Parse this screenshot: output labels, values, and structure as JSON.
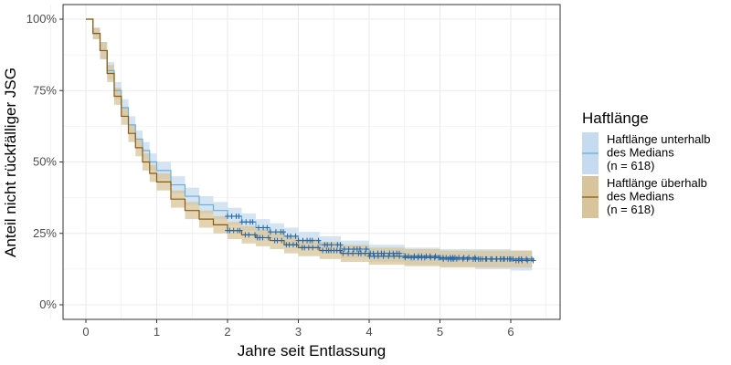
{
  "chart_data": {
    "type": "line",
    "subtype": "kaplan-meier survival curve with confidence bands and censoring marks",
    "title": "",
    "xlabel": "Jahre seit Entlassung",
    "ylabel": "Anteil nicht rückfälliger JSG",
    "xlim": [
      -0.3,
      6.7
    ],
    "ylim": [
      -0.05,
      1.05
    ],
    "x_ticks": [
      0,
      1,
      2,
      3,
      4,
      5,
      6
    ],
    "x_tick_labels": [
      "0",
      "1",
      "2",
      "3",
      "4",
      "5",
      "6"
    ],
    "y_ticks": [
      0,
      0.25,
      0.5,
      0.75,
      1.0
    ],
    "y_tick_labels": [
      "0%",
      "25%",
      "50%",
      "75%",
      "100%"
    ],
    "grid": true,
    "legend": {
      "title": "Haftlänge",
      "position": "right",
      "entries": [
        {
          "label_lines": [
            "Haftlänge unterhalb",
            "des Medians",
            "(n = 618)"
          ],
          "line_color": "#6BAED6",
          "fill_color": "#C6DBEF"
        },
        {
          "label_lines": [
            "Haftlänge überhalb",
            "des Medians",
            "(n = 618)"
          ],
          "line_color": "#8C5A0B",
          "fill_color": "#D8C49A"
        }
      ]
    },
    "series": [
      {
        "name": "Haftlänge unterhalb des Medians (n = 618)",
        "color": "#6BAED6",
        "x": [
          0,
          0.1,
          0.2,
          0.3,
          0.4,
          0.5,
          0.6,
          0.7,
          0.8,
          0.9,
          1.0,
          1.2,
          1.4,
          1.6,
          1.8,
          2.0,
          2.2,
          2.4,
          2.6,
          2.8,
          3.0,
          3.3,
          3.6,
          4.0,
          4.5,
          5.0,
          5.5,
          6.0,
          6.3
        ],
        "y": [
          1.0,
          0.95,
          0.89,
          0.82,
          0.75,
          0.69,
          0.63,
          0.58,
          0.54,
          0.5,
          0.47,
          0.42,
          0.38,
          0.35,
          0.33,
          0.31,
          0.29,
          0.27,
          0.255,
          0.24,
          0.225,
          0.21,
          0.195,
          0.18,
          0.17,
          0.165,
          0.16,
          0.155,
          0.155
        ],
        "ci_lower": [
          1.0,
          0.93,
          0.86,
          0.79,
          0.72,
          0.66,
          0.6,
          0.55,
          0.51,
          0.47,
          0.44,
          0.39,
          0.35,
          0.32,
          0.3,
          0.28,
          0.26,
          0.24,
          0.225,
          0.21,
          0.195,
          0.18,
          0.165,
          0.15,
          0.14,
          0.135,
          0.125,
          0.12,
          0.12
        ],
        "ci_upper": [
          1.0,
          0.97,
          0.92,
          0.85,
          0.78,
          0.72,
          0.66,
          0.61,
          0.57,
          0.53,
          0.5,
          0.45,
          0.41,
          0.38,
          0.36,
          0.34,
          0.32,
          0.3,
          0.285,
          0.27,
          0.255,
          0.24,
          0.225,
          0.21,
          0.2,
          0.195,
          0.195,
          0.19,
          0.19
        ]
      },
      {
        "name": "Haftlänge überhalb des Medians (n = 618)",
        "color": "#8C5A0B",
        "x": [
          0,
          0.1,
          0.2,
          0.3,
          0.4,
          0.5,
          0.6,
          0.7,
          0.8,
          0.9,
          1.0,
          1.2,
          1.4,
          1.6,
          1.8,
          2.0,
          2.2,
          2.4,
          2.6,
          2.8,
          3.0,
          3.3,
          3.6,
          4.0,
          4.5,
          5.0,
          5.5,
          6.0,
          6.3
        ],
        "y": [
          1.0,
          0.95,
          0.89,
          0.81,
          0.73,
          0.66,
          0.6,
          0.55,
          0.5,
          0.46,
          0.43,
          0.37,
          0.33,
          0.3,
          0.28,
          0.26,
          0.245,
          0.235,
          0.225,
          0.21,
          0.2,
          0.19,
          0.18,
          0.17,
          0.165,
          0.16,
          0.16,
          0.16,
          0.16
        ],
        "ci_lower": [
          1.0,
          0.93,
          0.86,
          0.78,
          0.7,
          0.63,
          0.57,
          0.52,
          0.47,
          0.43,
          0.4,
          0.34,
          0.3,
          0.27,
          0.25,
          0.23,
          0.215,
          0.205,
          0.195,
          0.18,
          0.17,
          0.16,
          0.15,
          0.14,
          0.135,
          0.13,
          0.13,
          0.13,
          0.13
        ],
        "ci_upper": [
          1.0,
          0.97,
          0.92,
          0.84,
          0.76,
          0.69,
          0.63,
          0.58,
          0.53,
          0.49,
          0.46,
          0.4,
          0.36,
          0.33,
          0.31,
          0.29,
          0.275,
          0.265,
          0.255,
          0.24,
          0.23,
          0.22,
          0.21,
          0.2,
          0.195,
          0.19,
          0.19,
          0.19,
          0.19
        ]
      }
    ],
    "censor_marks": {
      "color": "#2166AC",
      "symbol": "+",
      "note": "dense censoring marks from ~2 to ~6.3 years on both curves"
    }
  }
}
